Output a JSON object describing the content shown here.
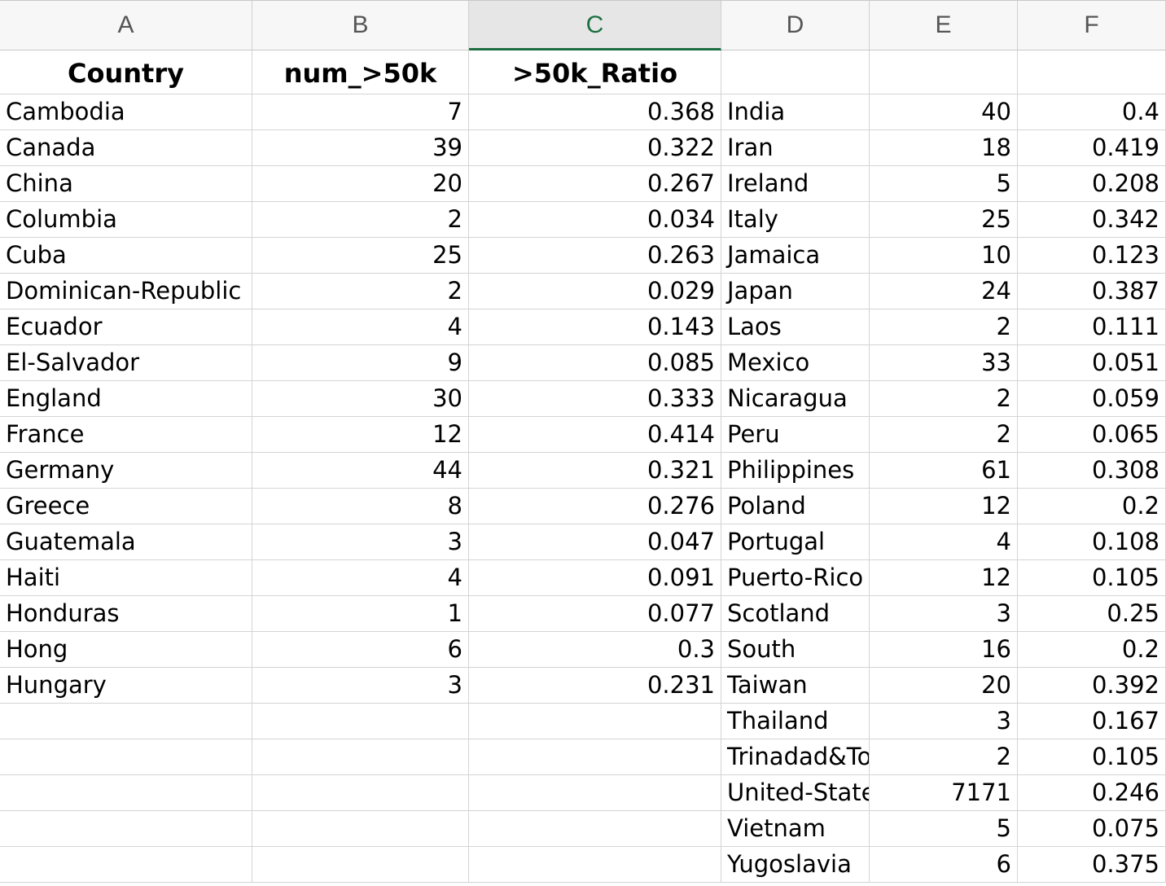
{
  "columns": [
    "A",
    "B",
    "C",
    "D",
    "E",
    "F"
  ],
  "selected_column": "C",
  "header": {
    "country": "Country",
    "num": "num_>50k",
    "ratio": ">50k_Ratio",
    "d": "",
    "e": "",
    "f": ""
  },
  "left_table": [
    {
      "country": "Cambodia",
      "num": "7",
      "ratio": "0.368"
    },
    {
      "country": "Canada",
      "num": "39",
      "ratio": "0.322"
    },
    {
      "country": "China",
      "num": "20",
      "ratio": "0.267"
    },
    {
      "country": "Columbia",
      "num": "2",
      "ratio": "0.034"
    },
    {
      "country": "Cuba",
      "num": "25",
      "ratio": "0.263"
    },
    {
      "country": "Dominican-Republic",
      "num": "2",
      "ratio": "0.029"
    },
    {
      "country": "Ecuador",
      "num": "4",
      "ratio": "0.143"
    },
    {
      "country": "El-Salvador",
      "num": "9",
      "ratio": "0.085"
    },
    {
      "country": "England",
      "num": "30",
      "ratio": "0.333"
    },
    {
      "country": "France",
      "num": "12",
      "ratio": "0.414"
    },
    {
      "country": "Germany",
      "num": "44",
      "ratio": "0.321"
    },
    {
      "country": "Greece",
      "num": "8",
      "ratio": "0.276"
    },
    {
      "country": "Guatemala",
      "num": "3",
      "ratio": "0.047"
    },
    {
      "country": "Haiti",
      "num": "4",
      "ratio": "0.091"
    },
    {
      "country": "Honduras",
      "num": "1",
      "ratio": "0.077"
    },
    {
      "country": "Hong",
      "num": "6",
      "ratio": "0.3"
    },
    {
      "country": "Hungary",
      "num": "3",
      "ratio": "0.231"
    },
    {
      "country": "",
      "num": "",
      "ratio": ""
    },
    {
      "country": "",
      "num": "",
      "ratio": ""
    },
    {
      "country": "",
      "num": "",
      "ratio": ""
    },
    {
      "country": "",
      "num": "",
      "ratio": ""
    },
    {
      "country": "",
      "num": "",
      "ratio": ""
    }
  ],
  "right_table": [
    {
      "country": "India",
      "num": "40",
      "ratio": "0.4"
    },
    {
      "country": "Iran",
      "num": "18",
      "ratio": "0.419"
    },
    {
      "country": "Ireland",
      "num": "5",
      "ratio": "0.208"
    },
    {
      "country": "Italy",
      "num": "25",
      "ratio": "0.342"
    },
    {
      "country": "Jamaica",
      "num": "10",
      "ratio": "0.123"
    },
    {
      "country": "Japan",
      "num": "24",
      "ratio": "0.387"
    },
    {
      "country": "Laos",
      "num": "2",
      "ratio": "0.111"
    },
    {
      "country": "Mexico",
      "num": "33",
      "ratio": "0.051"
    },
    {
      "country": "Nicaragua",
      "num": "2",
      "ratio": "0.059"
    },
    {
      "country": "Peru",
      "num": "2",
      "ratio": "0.065"
    },
    {
      "country": "Philippines",
      "num": "61",
      "ratio": "0.308"
    },
    {
      "country": "Poland",
      "num": "12",
      "ratio": "0.2"
    },
    {
      "country": "Portugal",
      "num": "4",
      "ratio": "0.108"
    },
    {
      "country": "Puerto-Rico",
      "num": "12",
      "ratio": "0.105"
    },
    {
      "country": "Scotland",
      "num": "3",
      "ratio": "0.25"
    },
    {
      "country": "South",
      "num": "16",
      "ratio": "0.2"
    },
    {
      "country": "Taiwan",
      "num": "20",
      "ratio": "0.392"
    },
    {
      "country": "Thailand",
      "num": "3",
      "ratio": "0.167"
    },
    {
      "country": "Trinadad&Tobago",
      "num": "2",
      "ratio": "0.105"
    },
    {
      "country": "United-States",
      "num": "7171",
      "ratio": "0.246"
    },
    {
      "country": "Vietnam",
      "num": "5",
      "ratio": "0.075"
    },
    {
      "country": "Yugoslavia",
      "num": "6",
      "ratio": "0.375"
    }
  ]
}
